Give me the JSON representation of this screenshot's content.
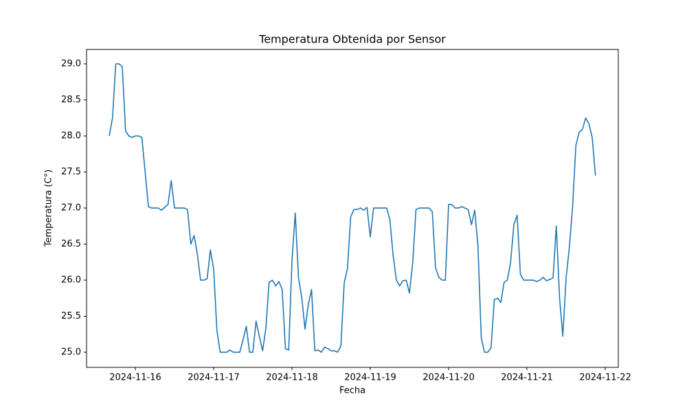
{
  "chart_data": {
    "type": "line",
    "title": "Temperatura Obtenida por Sensor",
    "x_label": "Fecha",
    "y_label": "Temperatura (C°)",
    "x": [
      "2024-11-15T16:00",
      "2024-11-15T17:00",
      "2024-11-15T18:00",
      "2024-11-15T19:00",
      "2024-11-15T20:00",
      "2024-11-15T21:00",
      "2024-11-15T22:00",
      "2024-11-15T23:00",
      "2024-11-16T00:00",
      "2024-11-16T01:00",
      "2024-11-16T02:00",
      "2024-11-16T04:00",
      "2024-11-16T05:00",
      "2024-11-16T07:00",
      "2024-11-16T08:00",
      "2024-11-16T10:00",
      "2024-11-16T11:00",
      "2024-11-16T12:00",
      "2024-11-16T15:00",
      "2024-11-16T16:00",
      "2024-11-16T17:00",
      "2024-11-16T18:00",
      "2024-11-16T19:00",
      "2024-11-16T20:00",
      "2024-11-16T21:00",
      "2024-11-16T22:00",
      "2024-11-16T23:00",
      "2024-11-17T00:00",
      "2024-11-17T01:00",
      "2024-11-17T02:00",
      "2024-11-17T04:00",
      "2024-11-17T05:00",
      "2024-11-17T06:00",
      "2024-11-17T08:00",
      "2024-11-17T09:00",
      "2024-11-17T10:00",
      "2024-11-17T11:00",
      "2024-11-17T12:00",
      "2024-11-17T13:00",
      "2024-11-17T14:00",
      "2024-11-17T15:00",
      "2024-11-17T16:00",
      "2024-11-17T17:00",
      "2024-11-17T18:00",
      "2024-11-17T19:00",
      "2024-11-17T20:00",
      "2024-11-17T21:00",
      "2024-11-17T22:00",
      "2024-11-17T23:00",
      "2024-11-18T00:00",
      "2024-11-18T01:00",
      "2024-11-18T02:00",
      "2024-11-18T03:00",
      "2024-11-18T04:00",
      "2024-11-18T05:00",
      "2024-11-18T06:00",
      "2024-11-18T07:00",
      "2024-11-18T08:00",
      "2024-11-18T09:00",
      "2024-11-18T10:00",
      "2024-11-18T11:00",
      "2024-11-18T12:00",
      "2024-11-18T13:00",
      "2024-11-18T14:00",
      "2024-11-18T15:00",
      "2024-11-18T16:00",
      "2024-11-18T17:00",
      "2024-11-18T18:00",
      "2024-11-18T19:00",
      "2024-11-18T20:00",
      "2024-11-18T21:00",
      "2024-11-18T22:00",
      "2024-11-18T23:00",
      "2024-11-19T00:00",
      "2024-11-19T01:00",
      "2024-11-19T05:00",
      "2024-11-19T06:00",
      "2024-11-19T07:00",
      "2024-11-19T08:00",
      "2024-11-19T09:00",
      "2024-11-19T10:00",
      "2024-11-19T11:00",
      "2024-11-19T12:00",
      "2024-11-19T13:00",
      "2024-11-19T14:00",
      "2024-11-19T15:00",
      "2024-11-19T18:00",
      "2024-11-19T19:00",
      "2024-11-19T20:00",
      "2024-11-19T21:00",
      "2024-11-19T22:00",
      "2024-11-19T23:00",
      "2024-11-20T00:00",
      "2024-11-20T01:00",
      "2024-11-20T02:00",
      "2024-11-20T03:00",
      "2024-11-20T04:00",
      "2024-11-20T05:00",
      "2024-11-20T06:00",
      "2024-11-20T07:00",
      "2024-11-20T08:00",
      "2024-11-20T09:00",
      "2024-11-20T10:00",
      "2024-11-20T11:00",
      "2024-11-20T12:00",
      "2024-11-20T13:00",
      "2024-11-20T14:00",
      "2024-11-20T15:00",
      "2024-11-20T16:00",
      "2024-11-20T17:00",
      "2024-11-20T18:00",
      "2024-11-20T19:00",
      "2024-11-20T20:00",
      "2024-11-20T21:00",
      "2024-11-20T22:00",
      "2024-11-20T23:00",
      "2024-11-21T00:00",
      "2024-11-21T02:00",
      "2024-11-21T03:00",
      "2024-11-21T04:00",
      "2024-11-21T05:00",
      "2024-11-21T06:00",
      "2024-11-21T07:00",
      "2024-11-21T08:00",
      "2024-11-21T09:00",
      "2024-11-21T10:00",
      "2024-11-21T11:00",
      "2024-11-21T12:00",
      "2024-11-21T13:00",
      "2024-11-21T14:00",
      "2024-11-21T15:00",
      "2024-11-21T16:00",
      "2024-11-21T17:00",
      "2024-11-21T18:00",
      "2024-11-21T19:00",
      "2024-11-21T20:00",
      "2024-11-21T21:00"
    ],
    "series": [
      {
        "color": "#1f77b4",
        "values": [
          28.0,
          28.25,
          29.0,
          29.0,
          28.96,
          28.07,
          28.0,
          27.98,
          28.0,
          28.0,
          27.98,
          27.02,
          27.0,
          27.0,
          26.97,
          27.05,
          27.38,
          27.0,
          27.0,
          26.98,
          26.5,
          26.62,
          26.36,
          26.0,
          26.0,
          26.02,
          26.42,
          26.15,
          25.3,
          25.0,
          25.0,
          25.03,
          25.0,
          25.0,
          25.17,
          25.36,
          25.0,
          25.0,
          25.43,
          25.22,
          25.02,
          25.33,
          25.97,
          26.0,
          25.92,
          25.98,
          25.87,
          25.05,
          25.03,
          26.27,
          26.93,
          26.03,
          25.76,
          25.32,
          25.66,
          25.87,
          25.02,
          25.03,
          25.0,
          25.07,
          25.05,
          25.02,
          25.02,
          25.0,
          25.09,
          25.96,
          26.16,
          26.88,
          26.98,
          26.98,
          27.0,
          26.97,
          27.01,
          26.6,
          27.0,
          27.0,
          26.84,
          26.34,
          26.0,
          25.92,
          25.99,
          26.0,
          25.82,
          26.24,
          26.98,
          27.0,
          27.0,
          26.95,
          26.17,
          26.04,
          26.0,
          26.0,
          27.05,
          27.05,
          27.0,
          27.0,
          27.02,
          27.0,
          26.98,
          26.77,
          26.97,
          26.47,
          25.2,
          25.0,
          25.0,
          25.06,
          25.73,
          25.75,
          25.69,
          25.97,
          26.0,
          26.25,
          26.77,
          26.9,
          26.08,
          26.0,
          26.0,
          26.0,
          25.98,
          26.0,
          26.04,
          25.99,
          26.01,
          26.03,
          26.75,
          25.75,
          25.22,
          26.03,
          26.45,
          27.02,
          27.87,
          28.05,
          28.09,
          28.25,
          28.17,
          27.98,
          27.45
        ]
      }
    ],
    "xticks": [
      "2024-11-16",
      "2024-11-17",
      "2024-11-18",
      "2024-11-19",
      "2024-11-20",
      "2024-11-21",
      "2024-11-22"
    ],
    "ylim": [
      24.79,
      29.2
    ],
    "yticks": [
      {
        "value": 25,
        "label": "25.0"
      },
      {
        "value": 25.5,
        "label": "25.5"
      },
      {
        "value": 26,
        "label": "26.0"
      },
      {
        "value": 26.5,
        "label": "26.5"
      },
      {
        "value": 27,
        "label": "27.0"
      },
      {
        "value": 27.5,
        "label": "27.5"
      },
      {
        "value": 28,
        "label": "28.0"
      },
      {
        "value": 28.5,
        "label": "28.5"
      },
      {
        "value": 29,
        "label": "29.0"
      }
    ],
    "grid": false
  }
}
